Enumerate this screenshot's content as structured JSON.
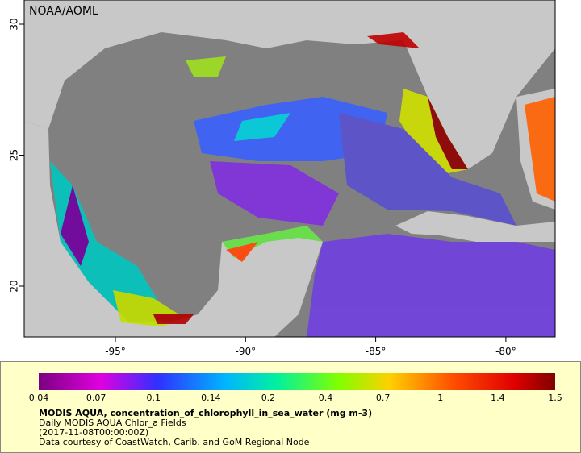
{
  "header": {
    "source": "NOAA/AOML"
  },
  "map": {
    "lat_labels": [
      "30",
      "25",
      "20"
    ],
    "lon_labels": [
      "-95°",
      "-90°",
      "-85°",
      "-80°"
    ]
  },
  "colorbar": {
    "ticks": [
      "0.04",
      "0.07",
      "0.1",
      "0.14",
      "0.2",
      "0.4",
      "0.7",
      "1",
      "1.4",
      "1.5"
    ]
  },
  "legend": {
    "title": "MODIS AQUA, concentration_of_chlorophyll_in_sea_water (mg m-3)",
    "lines": [
      "Daily MODIS AQUA Chlor_a Fields",
      "(2017-11-08T00:00:00Z)",
      "Data courtesy of CoastWatch, Carib. and GoM Regional Node"
    ]
  }
}
